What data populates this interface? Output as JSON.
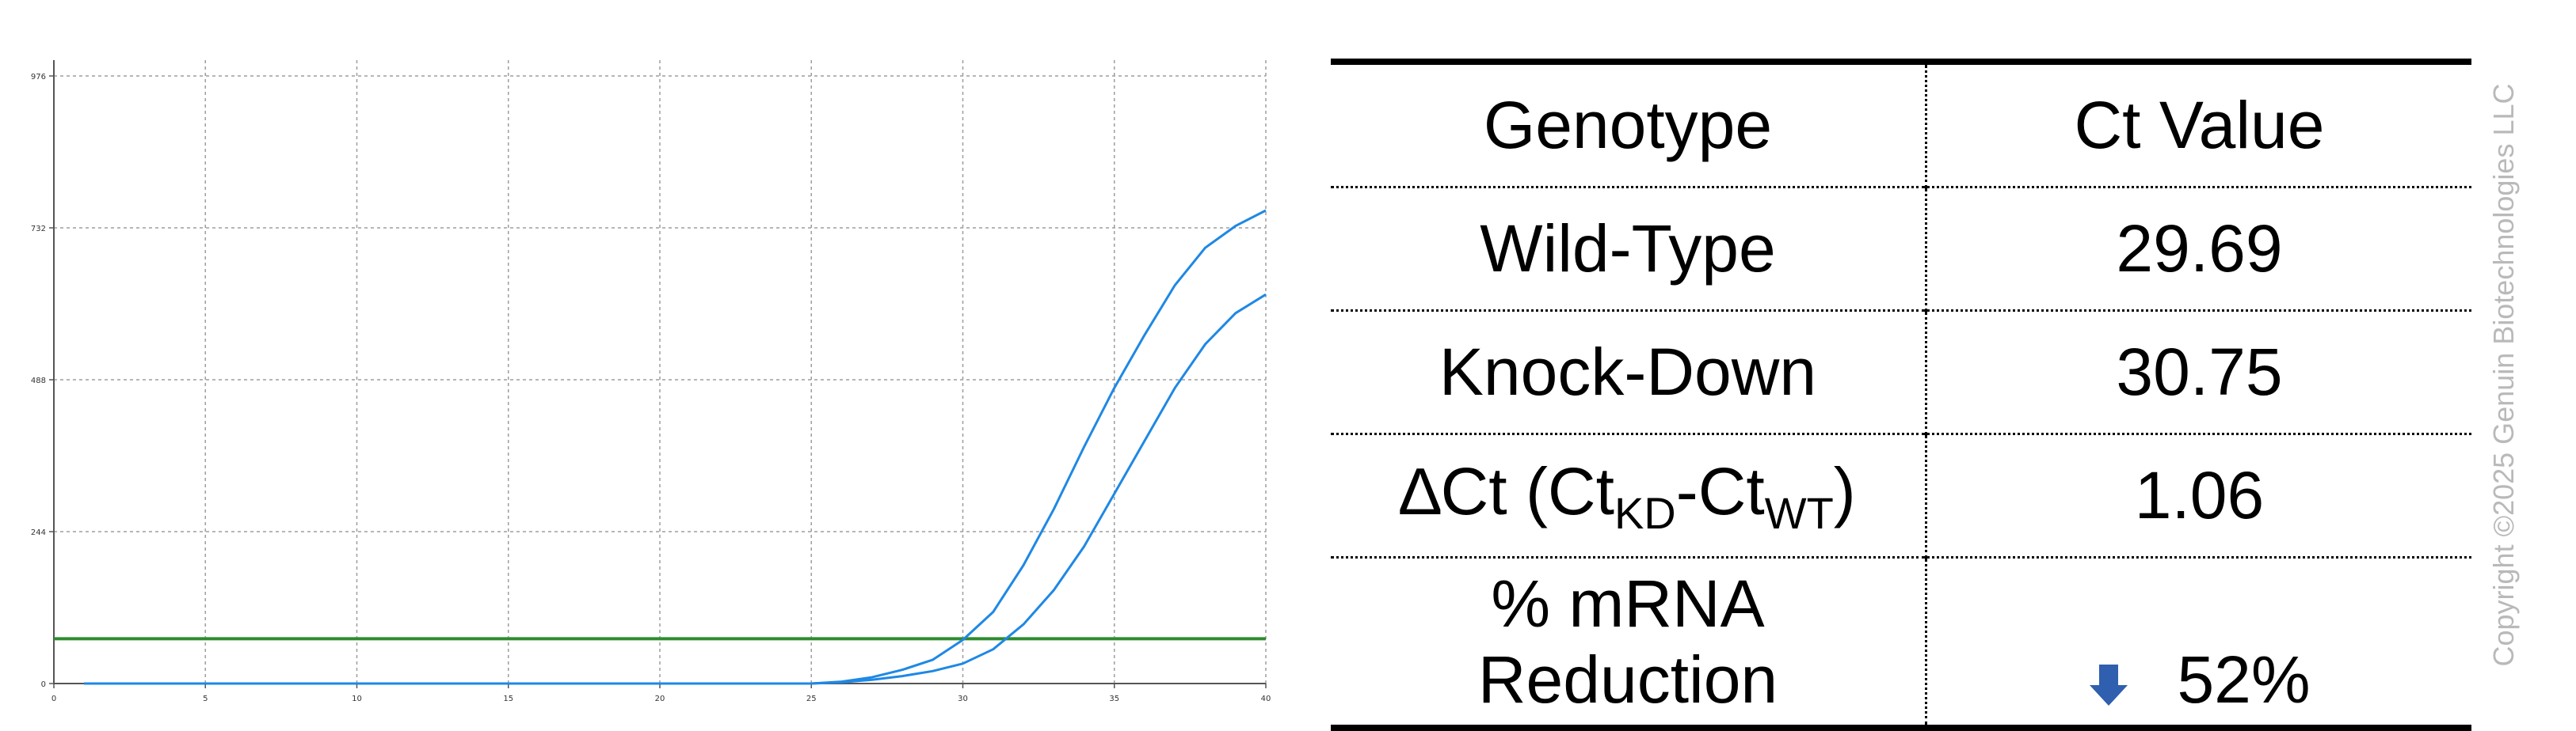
{
  "chart_data": {
    "type": "line",
    "title": "",
    "xlabel": "",
    "ylabel": "",
    "xlim": [
      0,
      40
    ],
    "ylim": [
      0,
      976
    ],
    "x_ticks": [
      "0",
      "5",
      "10",
      "15",
      "20",
      "25",
      "30",
      "35",
      "40"
    ],
    "y_ticks": [
      "0",
      "244",
      "488",
      "732",
      "976"
    ],
    "x_tick_values": [
      0,
      5,
      10,
      15,
      20,
      25,
      30,
      35,
      40
    ],
    "y_tick_values": [
      0,
      244,
      488,
      732,
      976
    ],
    "grid": true,
    "threshold": 72,
    "series": [
      {
        "color": "#1e88e5",
        "x": [
          1,
          25,
          26,
          27,
          28,
          29,
          30,
          31,
          32,
          33,
          34,
          35,
          36,
          37,
          38,
          39,
          40
        ],
        "y": [
          0,
          0,
          3,
          10,
          22,
          38,
          70,
          115,
          190,
          280,
          380,
          475,
          560,
          640,
          700,
          735,
          760
        ]
      },
      {
        "color": "#1e88e5",
        "x": [
          1,
          25,
          26,
          27,
          28,
          29,
          30,
          31,
          32,
          33,
          34,
          35,
          36,
          37,
          38,
          39,
          40
        ],
        "y": [
          0,
          0,
          2,
          6,
          12,
          20,
          32,
          55,
          95,
          150,
          220,
          305,
          390,
          475,
          545,
          595,
          625
        ]
      }
    ],
    "colors": {
      "grid": "#9e9e9e",
      "axis": "#555555",
      "threshold": "#2e8b2e",
      "curve": "#1e88e5"
    }
  },
  "table": {
    "header": {
      "genotype": "Genotype",
      "ct_value": "Ct Value"
    },
    "rows": [
      {
        "label": "Wild-Type",
        "value": "29.69"
      },
      {
        "label": "Knock-Down",
        "value": "30.75"
      }
    ],
    "delta": {
      "symbol": "∆",
      "prefix": "Ct (Ct",
      "sub_kd": "KD",
      "dash": "-Ct",
      "sub_wt": "WT",
      "suffix": ")",
      "value": "1.06"
    },
    "reduction": {
      "label_line1": "% mRNA",
      "label_line2": "Reduction",
      "value": "52%",
      "arrow_icon": "down-arrow-icon",
      "arrow_color": "#2f5fae"
    }
  },
  "copyright": "Copyright ©2025 Genuin Biotechnologies LLC"
}
